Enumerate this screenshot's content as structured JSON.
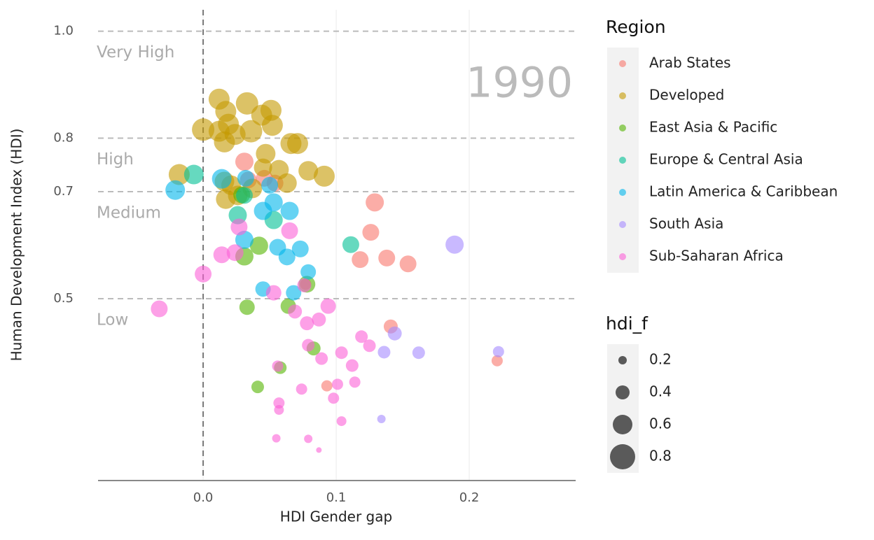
{
  "chart_data": {
    "type": "scatter",
    "annotation": "1990",
    "x_label": "HDI Gender gap",
    "y_label": "Human Development Index (HDI)",
    "xlim": [
      -0.079,
      0.28
    ],
    "ylim": [
      0.16,
      1.04
    ],
    "xticks": [
      {
        "value": 0,
        "label": "0.0"
      },
      0.1,
      0.2
    ],
    "yticks": [
      0.5,
      0.7,
      0.8,
      {
        "value": 1,
        "label": "1.0"
      }
    ],
    "vline": 0,
    "bands": [
      {
        "text": "Very High",
        "y": 1
      },
      {
        "text": "High",
        "y": 0.8
      },
      {
        "text": "Medium",
        "y": 0.7
      },
      {
        "text": "Low",
        "y": 0.5
      }
    ],
    "legend_title": "Region",
    "size_legend": {
      "title": "hdi_f",
      "values": [
        0.2,
        0.4,
        0.6,
        0.8
      ]
    },
    "series": [
      {
        "name": "Arab States",
        "color": "#F8766D",
        "x": [
          0.129,
          0.126,
          0.118,
          0.138,
          0.154,
          0.141,
          0.221,
          0.093,
          0.031,
          0.034,
          0.046,
          0.054,
          0.077
        ],
        "values": [
          0.68,
          0.624,
          0.573,
          0.576,
          0.565,
          0.448,
          0.384,
          0.337,
          0.756,
          0.722,
          0.725,
          0.716,
          0.527
        ],
        "sizes": [
          0.55,
          0.5,
          0.5,
          0.5,
          0.5,
          0.4,
          0.3,
          0.3,
          0.55,
          0.5,
          0.5,
          0.5,
          0.3
        ]
      },
      {
        "name": "Developed",
        "color": "#C49A00",
        "x": [
          0.012,
          0.033,
          0.017,
          0.051,
          0.044,
          0.019,
          0.0,
          0.036,
          0.012,
          0.052,
          0.024,
          0.016,
          0.066,
          0.071,
          0.047,
          -0.018,
          0.079,
          0.091,
          0.057,
          0.016,
          0.021,
          0.063,
          0.017,
          0.037,
          0.026,
          0.045
        ],
        "values": [
          0.873,
          0.865,
          0.85,
          0.852,
          0.843,
          0.826,
          0.816,
          0.813,
          0.813,
          0.824,
          0.807,
          0.793,
          0.79,
          0.79,
          0.771,
          0.732,
          0.739,
          0.729,
          0.741,
          0.719,
          0.712,
          0.716,
          0.686,
          0.706,
          0.693,
          0.745
        ],
        "sizes": [
          0.65,
          0.7,
          0.65,
          0.65,
          0.65,
          0.65,
          0.7,
          0.7,
          0.65,
          0.65,
          0.65,
          0.65,
          0.65,
          0.65,
          0.6,
          0.65,
          0.6,
          0.65,
          0.6,
          0.6,
          0.6,
          0.6,
          0.6,
          0.6,
          0.6,
          0.55
        ]
      },
      {
        "name": "East Asia & Pacific",
        "color": "#53B400",
        "x": [
          0.031,
          0.042,
          0.078,
          0.033,
          0.064,
          0.083,
          0.058,
          0.041,
          0.029
        ],
        "values": [
          0.579,
          0.599,
          0.527,
          0.484,
          0.486,
          0.407,
          0.371,
          0.335,
          0.694
        ],
        "sizes": [
          0.55,
          0.55,
          0.5,
          0.45,
          0.45,
          0.4,
          0.35,
          0.35,
          0.5
        ]
      },
      {
        "name": "Europe & Central Asia",
        "color": "#00C094",
        "x": [
          -0.007,
          0.111,
          0.026,
          0.053,
          0.031
        ],
        "values": [
          0.732,
          0.601,
          0.656,
          0.647,
          0.693
        ],
        "sizes": [
          0.6,
          0.5,
          0.55,
          0.55,
          0.5
        ]
      },
      {
        "name": "Latin America & Caribbean",
        "color": "#00B6EB",
        "x": [
          -0.021,
          0.014,
          0.032,
          0.045,
          0.053,
          0.065,
          0.031,
          0.056,
          0.073,
          0.063,
          0.079,
          0.045,
          0.068,
          0.05
        ],
        "values": [
          0.703,
          0.724,
          0.725,
          0.664,
          0.68,
          0.664,
          0.61,
          0.596,
          0.593,
          0.578,
          0.55,
          0.518,
          0.511,
          0.712
        ],
        "sizes": [
          0.6,
          0.6,
          0.5,
          0.55,
          0.55,
          0.55,
          0.55,
          0.5,
          0.5,
          0.5,
          0.45,
          0.45,
          0.45,
          0.5
        ]
      },
      {
        "name": "South Asia",
        "color": "#A58AFF",
        "x": [
          0.189,
          0.144,
          0.136,
          0.162,
          0.222,
          0.134
        ],
        "values": [
          0.601,
          0.435,
          0.4,
          0.399,
          0.401,
          0.275
        ],
        "sizes": [
          0.55,
          0.4,
          0.35,
          0.35,
          0.3,
          0.2
        ]
      },
      {
        "name": "Sub-Saharan Africa",
        "color": "#FB61D7",
        "x": [
          0.027,
          0.065,
          0.024,
          0.014,
          0.0,
          0.053,
          -0.033,
          0.094,
          0.069,
          0.087,
          0.078,
          0.076,
          0.119,
          0.079,
          0.125,
          0.104,
          0.089,
          0.112,
          0.056,
          0.114,
          0.101,
          0.074,
          0.098,
          0.057,
          0.057,
          0.104,
          0.055,
          0.079,
          0.087
        ],
        "values": [
          0.634,
          0.627,
          0.586,
          0.582,
          0.546,
          0.511,
          0.481,
          0.486,
          0.476,
          0.461,
          0.454,
          0.525,
          0.429,
          0.413,
          0.412,
          0.399,
          0.388,
          0.375,
          0.374,
          0.344,
          0.34,
          0.331,
          0.314,
          0.305,
          0.292,
          0.271,
          0.239,
          0.238,
          0.217
        ],
        "sizes": [
          0.5,
          0.5,
          0.5,
          0.5,
          0.5,
          0.45,
          0.5,
          0.45,
          0.4,
          0.4,
          0.4,
          0.4,
          0.35,
          0.35,
          0.35,
          0.35,
          0.35,
          0.35,
          0.3,
          0.3,
          0.3,
          0.3,
          0.3,
          0.3,
          0.25,
          0.25,
          0.2,
          0.2,
          0.1
        ]
      }
    ]
  }
}
